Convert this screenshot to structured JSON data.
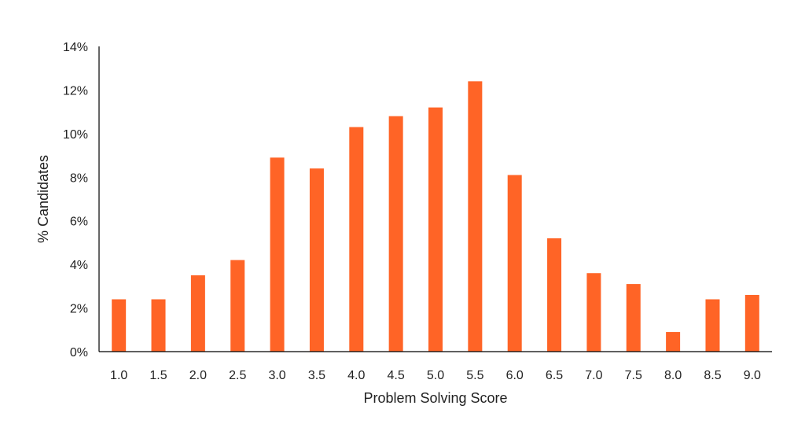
{
  "chart_data": {
    "type": "bar",
    "title": "",
    "xlabel": "Problem Solving Score",
    "ylabel": "% Candidates",
    "categories": [
      "1.0",
      "1.5",
      "2.0",
      "2.5",
      "3.0",
      "3.5",
      "4.0",
      "4.5",
      "5.0",
      "5.5",
      "6.0",
      "6.5",
      "7.0",
      "7.5",
      "8.0",
      "8.5",
      "9.0"
    ],
    "values": [
      2.4,
      2.4,
      3.5,
      4.2,
      8.9,
      8.4,
      10.3,
      10.8,
      11.2,
      12.4,
      8.1,
      5.2,
      3.6,
      3.1,
      0.9,
      2.4,
      2.6
    ],
    "ylim": [
      0,
      14
    ],
    "yticks": [
      "0%",
      "2%",
      "4%",
      "6%",
      "8%",
      "10%",
      "12%",
      "14%"
    ],
    "grid": false,
    "legend": "none",
    "bar_color": "#FF6426",
    "axis_color": "#000000"
  }
}
